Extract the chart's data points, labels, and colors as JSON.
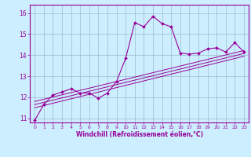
{
  "xlabel": "Windchill (Refroidissement éolien,°C)",
  "bg_color": "#cceeff",
  "line_color": "#990099",
  "grid_color": "#99bbcc",
  "xlim": [
    -0.5,
    23.5
  ],
  "ylim": [
    10.8,
    16.4
  ],
  "yticks": [
    11,
    12,
    13,
    14,
    15,
    16
  ],
  "xticks": [
    0,
    1,
    2,
    3,
    4,
    5,
    6,
    7,
    8,
    9,
    10,
    11,
    12,
    13,
    14,
    15,
    16,
    17,
    18,
    19,
    20,
    21,
    22,
    23
  ],
  "main_x": [
    0,
    1,
    2,
    3,
    4,
    5,
    6,
    7,
    8,
    9,
    10,
    11,
    12,
    13,
    14,
    15,
    16,
    17,
    18,
    19,
    20,
    21,
    22,
    23
  ],
  "main_y": [
    10.9,
    11.65,
    12.1,
    12.25,
    12.4,
    12.2,
    12.2,
    11.95,
    12.2,
    12.75,
    13.85,
    15.55,
    15.35,
    15.85,
    15.5,
    15.35,
    14.1,
    14.05,
    14.1,
    14.3,
    14.35,
    14.15,
    14.6,
    14.15
  ],
  "reg_lines": [
    {
      "x": [
        0,
        23
      ],
      "y": [
        11.5,
        13.95
      ]
    },
    {
      "x": [
        0,
        23
      ],
      "y": [
        11.65,
        14.08
      ]
    },
    {
      "x": [
        0,
        23
      ],
      "y": [
        11.8,
        14.22
      ]
    }
  ],
  "figsize": [
    3.2,
    2.0
  ],
  "dpi": 100
}
